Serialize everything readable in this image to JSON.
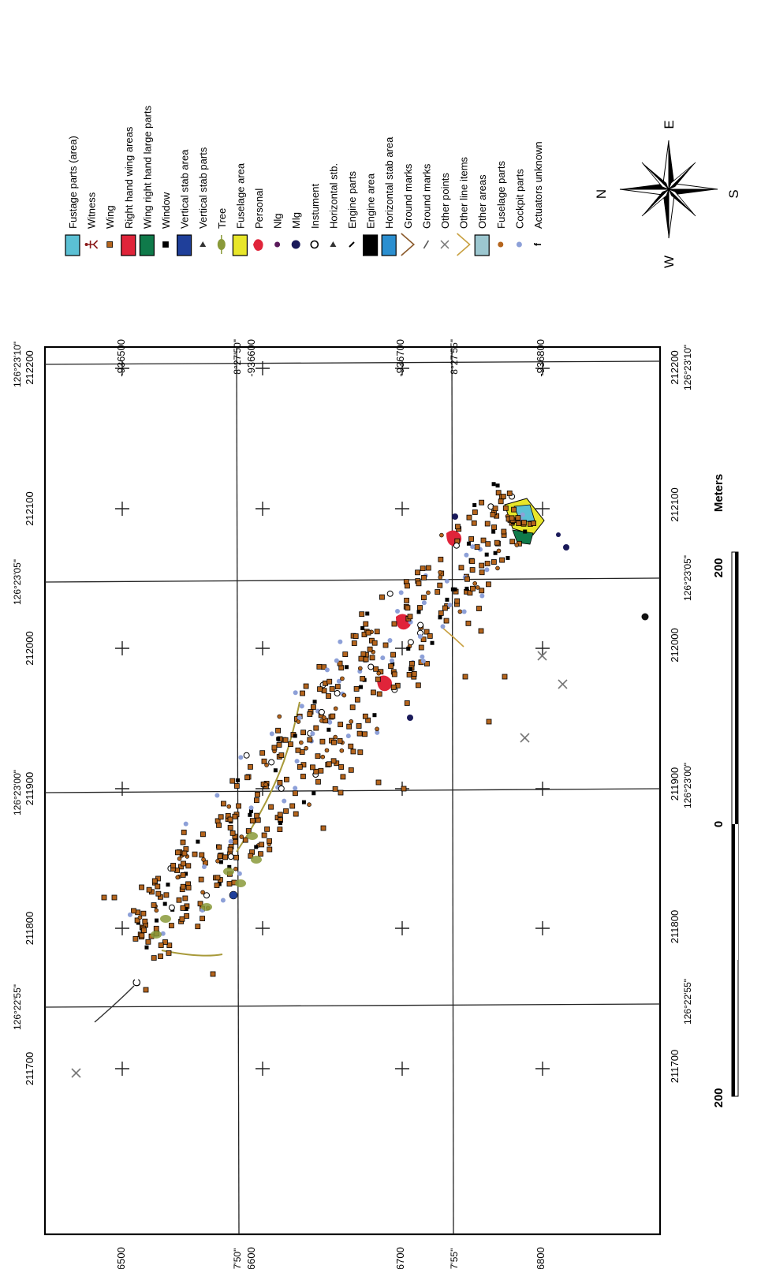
{
  "map": {
    "frame_ticks": {
      "easting_labels": [
        "211700",
        "211800",
        "211900",
        "212000",
        "212100",
        "212200"
      ],
      "northing_labels": [
        "-936500",
        "-936600",
        "-936700",
        "-936800"
      ]
    },
    "geo_ticks": {
      "longitude_labels": [
        "126°22'55\"",
        "126°23'00\"",
        "126°23'05\"",
        "126°23'10\""
      ],
      "latitude_labels": [
        "8°27'50\"",
        "8°27'55\""
      ]
    },
    "scale_bar": {
      "labels": [
        "200",
        "0",
        "200"
      ],
      "unit": "Meters"
    },
    "compass": {
      "N": "N",
      "E": "E",
      "S": "S",
      "W": "W"
    },
    "annotation_letter": "C"
  },
  "legend": {
    "items": [
      {
        "label": "Fustage parts (area)",
        "symbol": "area",
        "color": "#5bc0d4"
      },
      {
        "label": "Witness",
        "symbol": "figure",
        "color": "#8b1a1a"
      },
      {
        "label": "Wing",
        "symbol": "small-square",
        "color": "#b5651d"
      },
      {
        "label": "Right hand wing areas",
        "symbol": "area",
        "color": "#e0243a"
      },
      {
        "label": "Wing right hand large parts",
        "symbol": "area",
        "color": "#0f7a4a"
      },
      {
        "label": "Window",
        "symbol": "small-square",
        "color": "#000000"
      },
      {
        "label": "Vertical stab area",
        "symbol": "area",
        "color": "#1f3f9a"
      },
      {
        "label": "Vertical stab parts",
        "symbol": "triangle",
        "color": "#333333"
      },
      {
        "label": "Tree",
        "symbol": "tree",
        "color": "#8a9a3a"
      },
      {
        "label": "Fuselage area",
        "symbol": "area",
        "color": "#e8e62a"
      },
      {
        "label": "Personal",
        "symbol": "blob",
        "color": "#e0243a"
      },
      {
        "label": "Nlg",
        "symbol": "dot",
        "color": "#5a1a5a"
      },
      {
        "label": "Mlg",
        "symbol": "big-dot",
        "color": "#1a1a5a"
      },
      {
        "label": "Instument",
        "symbol": "ring",
        "color": "#000000"
      },
      {
        "label": "Horizontal stb.",
        "symbol": "triangle",
        "color": "#333333"
      },
      {
        "label": "Engine parts",
        "symbol": "slash",
        "color": "#000000"
      },
      {
        "label": "Engine area",
        "symbol": "area",
        "color": "#000000"
      },
      {
        "label": "Horizontal stab area",
        "symbol": "area",
        "color": "#2b8fd0"
      },
      {
        "label": "Ground marks",
        "symbol": "line",
        "color": "#8b5a2b"
      },
      {
        "label": "Ground marks",
        "symbol": "small-line",
        "color": "#555555"
      },
      {
        "label": "Other points",
        "symbol": "cross",
        "color": "#777777"
      },
      {
        "label": "Other line items",
        "symbol": "line",
        "color": "#c8a040"
      },
      {
        "label": "Other areas",
        "symbol": "area",
        "color": "#9cc7d0"
      },
      {
        "label": "Fuselage parts",
        "symbol": "dot",
        "color": "#b5651d"
      },
      {
        "label": "Cockpit parts",
        "symbol": "dot",
        "color": "#8da0d8"
      },
      {
        "label": "Actuators unknown",
        "symbol": "f",
        "color": "#000000"
      }
    ]
  }
}
